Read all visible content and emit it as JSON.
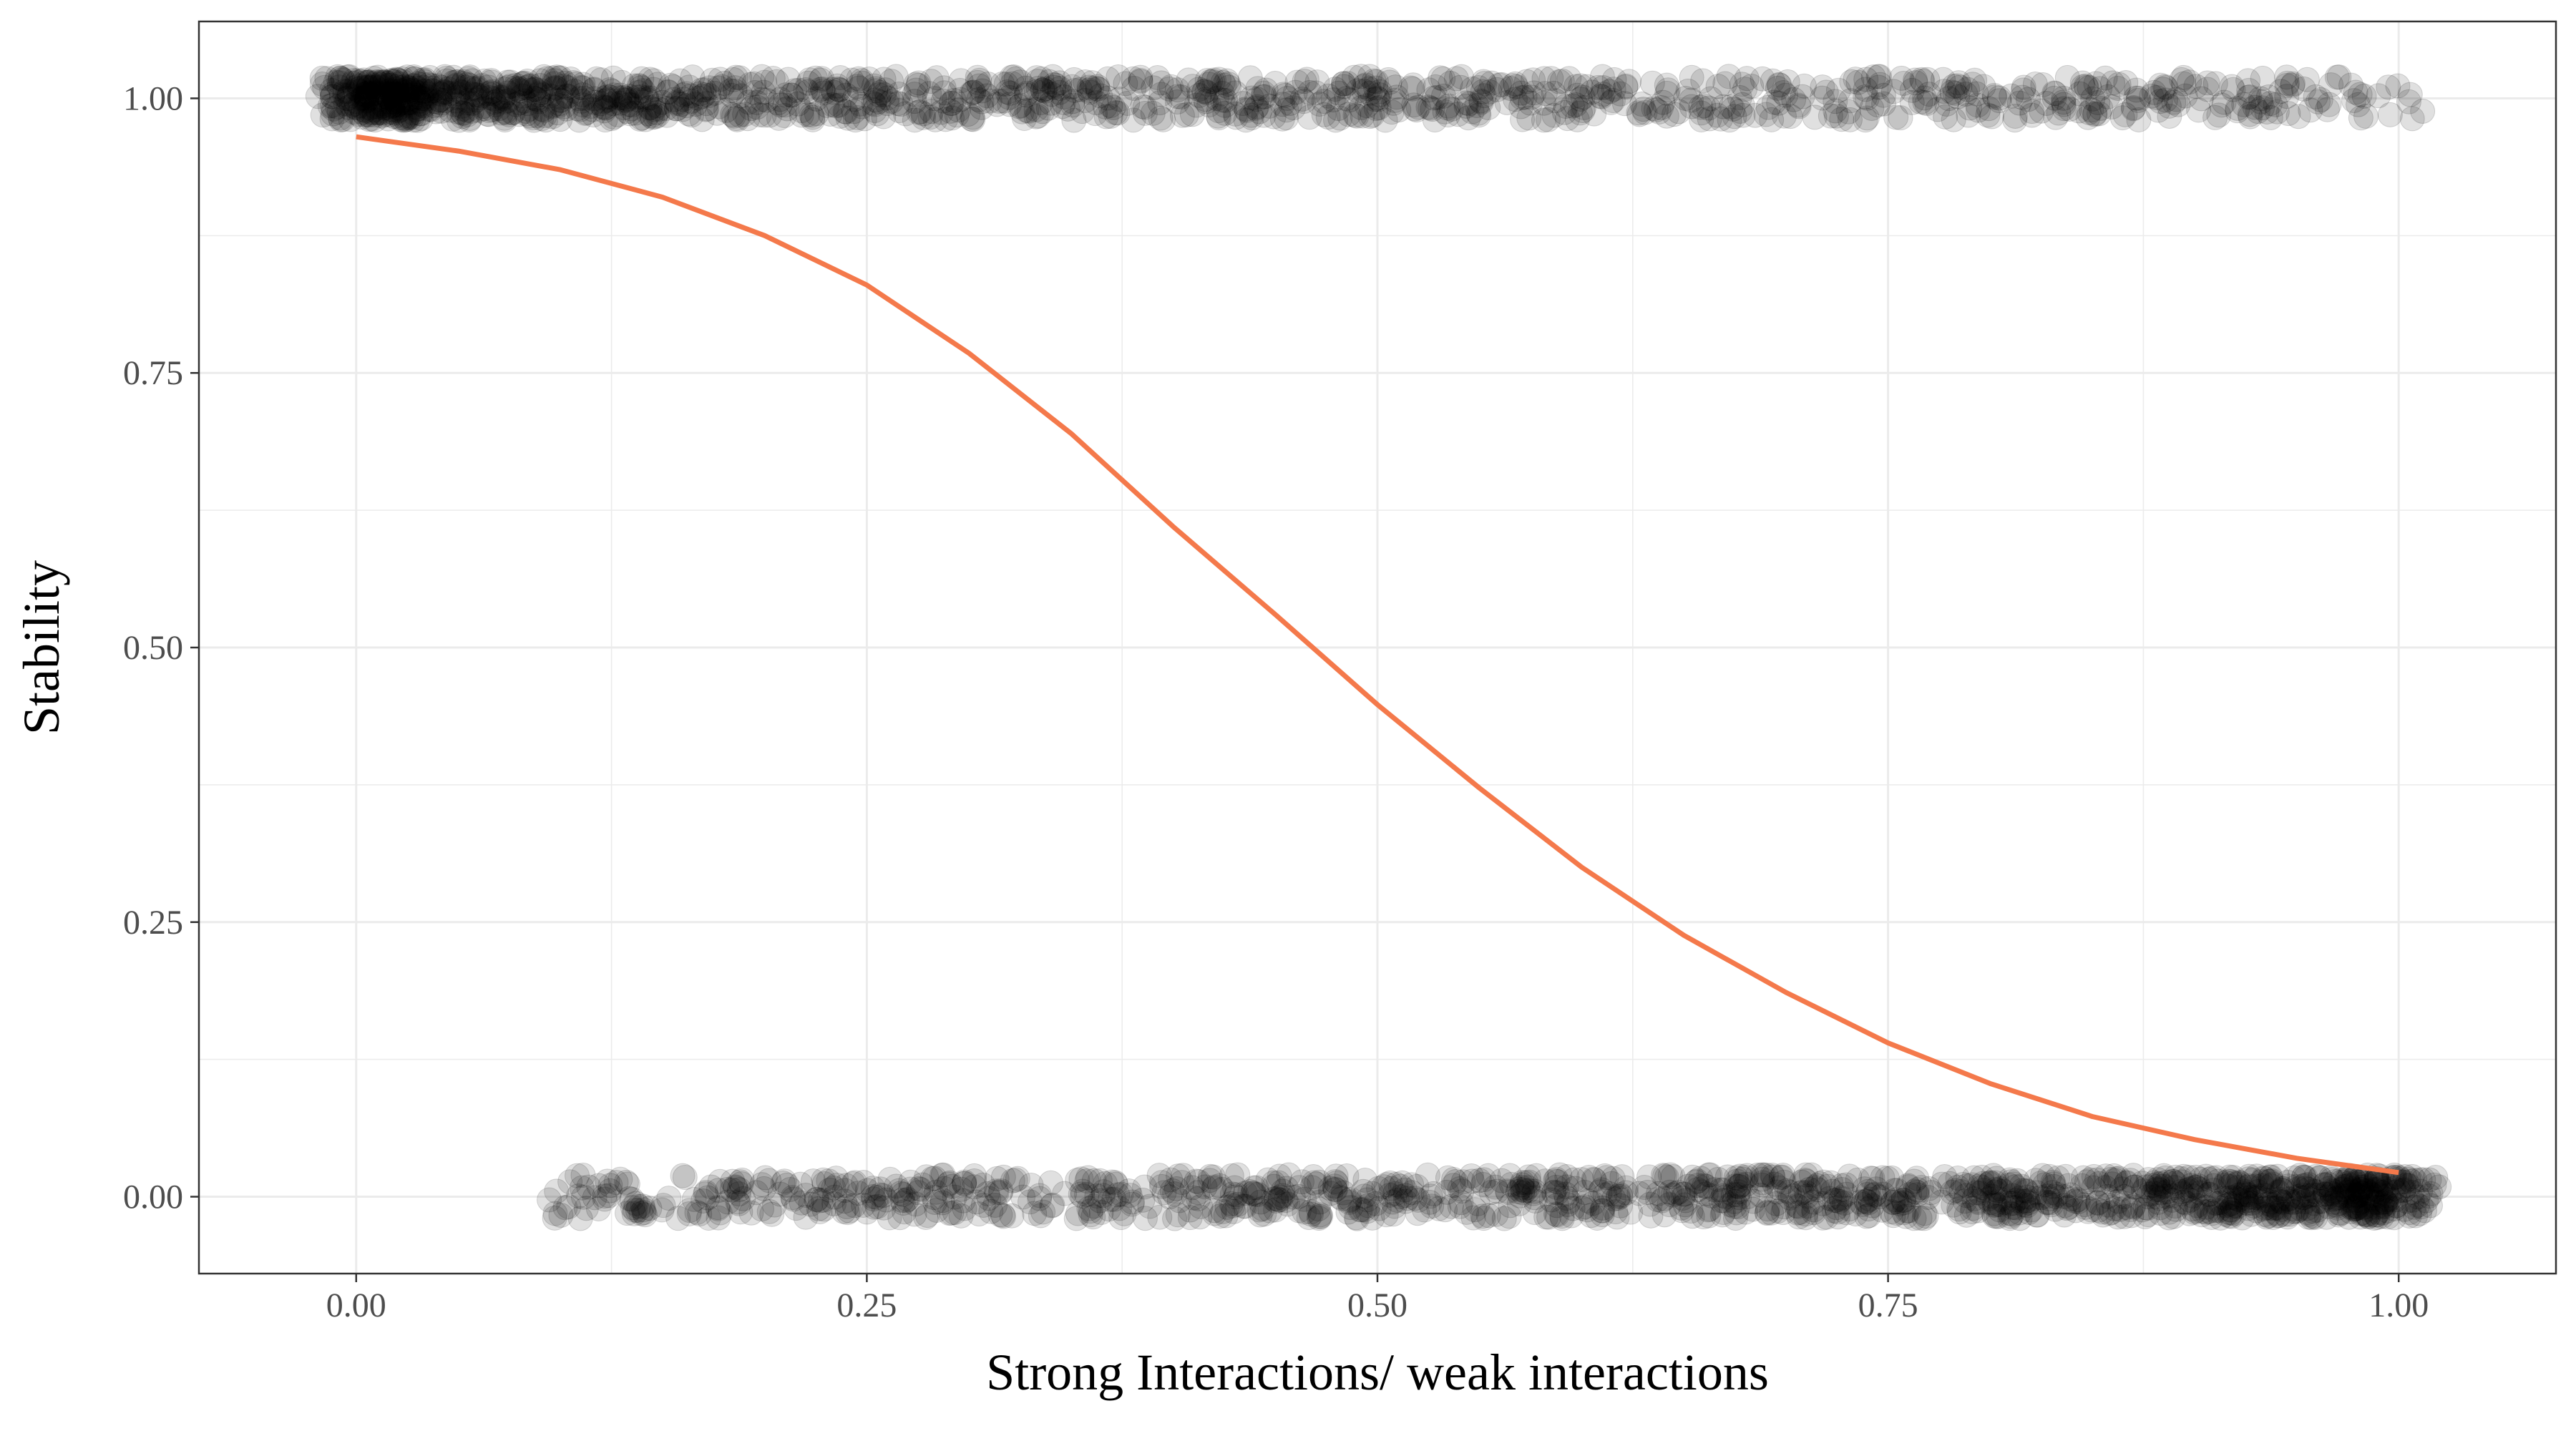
{
  "chart_data": {
    "type": "scatter",
    "xlabel": "Strong Interactions/ weak interactions",
    "ylabel": "Stability",
    "xlim": [
      -0.077,
      1.077
    ],
    "ylim": [
      -0.07,
      1.07
    ],
    "x_ticks": [
      0.0,
      0.25,
      0.5,
      0.75,
      1.0
    ],
    "x_tick_labels": [
      "0.00",
      "0.25",
      "0.50",
      "0.75",
      "1.00"
    ],
    "y_ticks": [
      0.0,
      0.25,
      0.5,
      0.75,
      1.0
    ],
    "y_tick_labels": [
      "0.00",
      "0.25",
      "0.50",
      "0.75",
      "1.00"
    ],
    "grid": true,
    "colors": {
      "points": "#000000",
      "fit_line": "#f4794b",
      "grid": "#ebebeb",
      "panel_border": "#333333"
    },
    "series": [
      {
        "kind": "points",
        "y_level": 1,
        "x_range": [
          0.0,
          1.0
        ],
        "density": "dense at low x, sparse at high x",
        "jitter": 0.02
      },
      {
        "kind": "points",
        "y_level": 0,
        "x_range": [
          0.1,
          1.0
        ],
        "density": "sparse at low x, dense at high x",
        "jitter": 0.02
      },
      {
        "kind": "line",
        "x": [
          0.0,
          0.05,
          0.1,
          0.15,
          0.2,
          0.25,
          0.3,
          0.35,
          0.4,
          0.45,
          0.5,
          0.55,
          0.6,
          0.65,
          0.7,
          0.75,
          0.8,
          0.85,
          0.9,
          0.95,
          1.0
        ],
        "y": [
          0.965,
          0.952,
          0.935,
          0.91,
          0.875,
          0.83,
          0.768,
          0.695,
          0.61,
          0.53,
          0.448,
          0.372,
          0.3,
          0.238,
          0.186,
          0.14,
          0.103,
          0.073,
          0.052,
          0.035,
          0.022
        ]
      }
    ]
  }
}
